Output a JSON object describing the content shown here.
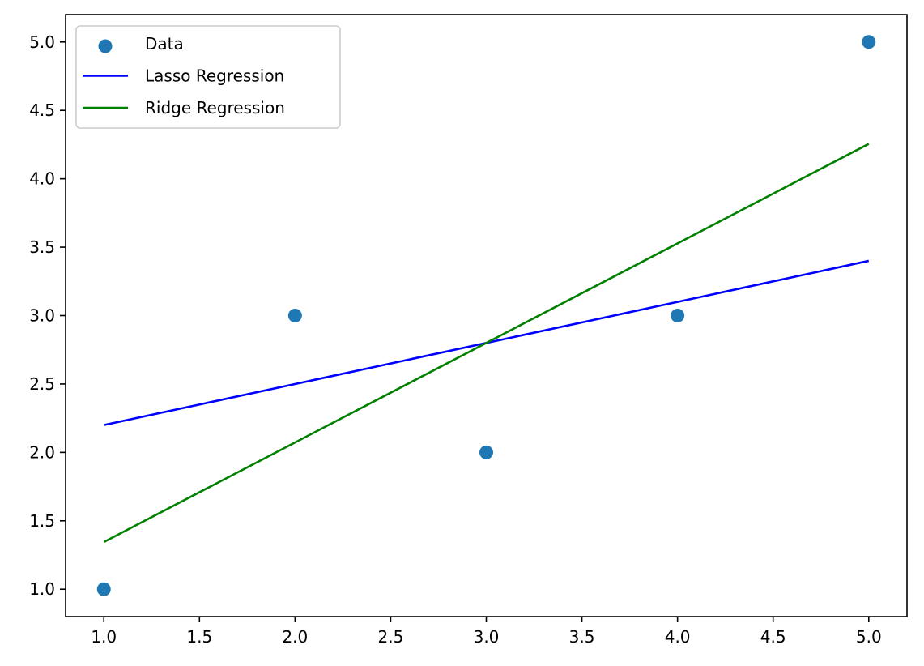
{
  "chart_data": {
    "type": "scatter",
    "title": "",
    "xlabel": "",
    "ylabel": "",
    "xlim": [
      0.8,
      5.2
    ],
    "ylim": [
      0.8,
      5.2
    ],
    "x_ticks": [
      1.0,
      1.5,
      2.0,
      2.5,
      3.0,
      3.5,
      4.0,
      4.5,
      5.0
    ],
    "y_ticks": [
      1.0,
      1.5,
      2.0,
      2.5,
      3.0,
      3.5,
      4.0,
      4.5,
      5.0
    ],
    "x_tick_labels": [
      "1.0",
      "1.5",
      "2.0",
      "2.5",
      "3.0",
      "3.5",
      "4.0",
      "4.5",
      "5.0"
    ],
    "y_tick_labels": [
      "1.0",
      "1.5",
      "2.0",
      "2.5",
      "3.0",
      "3.5",
      "4.0",
      "4.5",
      "5.0"
    ],
    "grid": false,
    "legend_position": "upper-left",
    "series": [
      {
        "name": "Data",
        "kind": "scatter",
        "color": "#1f77b4",
        "x": [
          1,
          2,
          3,
          4,
          5
        ],
        "y": [
          1,
          3,
          2,
          3,
          5
        ]
      },
      {
        "name": "Lasso Regression",
        "kind": "line",
        "color": "#0000ff",
        "x": [
          1,
          5
        ],
        "y": [
          2.2,
          3.4
        ]
      },
      {
        "name": "Ridge Regression",
        "kind": "line",
        "color": "#008000",
        "x": [
          1,
          5
        ],
        "y": [
          1.345,
          4.255
        ]
      }
    ]
  }
}
